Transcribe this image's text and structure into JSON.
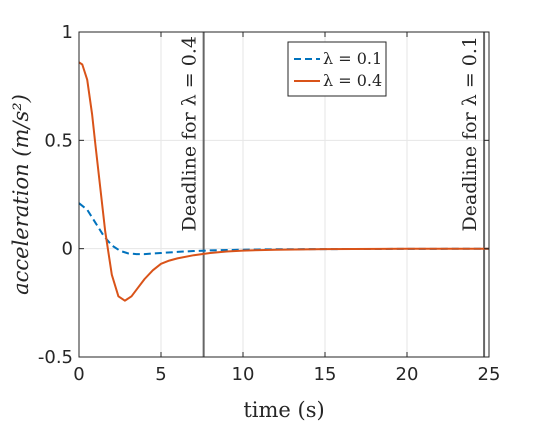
{
  "chart_data": {
    "type": "line",
    "xlabel": "time (s)",
    "ylabel": "acceleration (m/s²)",
    "xlim": [
      0,
      25
    ],
    "ylim": [
      -0.5,
      1
    ],
    "xticks": [
      "0",
      "5",
      "10",
      "15",
      "20",
      "25"
    ],
    "yticks": [
      "-0.5",
      "0",
      "0.5",
      "1"
    ],
    "grid": true,
    "legend_position": "top-right",
    "series": [
      {
        "name": "λ = 0.1",
        "style": "dashed",
        "color": "#0072BD",
        "x": [
          0,
          0.5,
          1,
          1.5,
          2,
          2.5,
          3,
          3.5,
          4,
          5,
          6,
          7,
          8,
          10,
          12,
          15,
          20,
          25
        ],
        "y": [
          0.21,
          0.18,
          0.12,
          0.06,
          0.015,
          -0.01,
          -0.022,
          -0.025,
          -0.025,
          -0.02,
          -0.015,
          -0.011,
          -0.008,
          -0.005,
          -0.003,
          -0.002,
          -0.001,
          0
        ]
      },
      {
        "name": "λ = 0.4",
        "style": "solid",
        "color": "#D95319",
        "x": [
          0,
          0.2,
          0.5,
          0.8,
          1,
          1.3,
          1.6,
          2,
          2.4,
          2.8,
          3.2,
          3.6,
          4,
          4.5,
          5,
          5.5,
          6,
          7,
          8,
          9,
          10,
          12,
          15,
          20,
          25
        ],
        "y": [
          0.86,
          0.85,
          0.78,
          0.62,
          0.48,
          0.28,
          0.08,
          -0.12,
          -0.22,
          -0.24,
          -0.22,
          -0.18,
          -0.14,
          -0.1,
          -0.07,
          -0.055,
          -0.045,
          -0.03,
          -0.02,
          -0.013,
          -0.009,
          -0.005,
          -0.002,
          0,
          0
        ]
      }
    ],
    "vlines": [
      {
        "x": 7.6,
        "label": "Deadline for λ = 0.4"
      },
      {
        "x": 24.7,
        "label": "Deadline for λ = 0.1"
      }
    ]
  }
}
